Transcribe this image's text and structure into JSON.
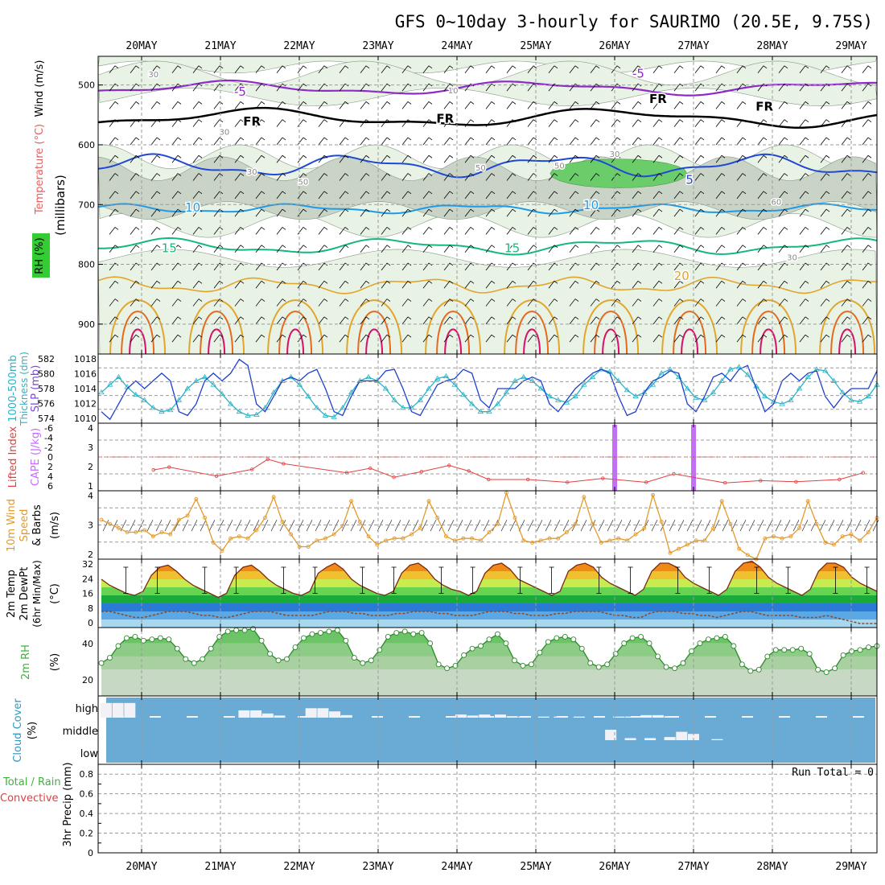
{
  "title": "GFS 0~10day 3-hourly for SAURIMO (20.5E, 9.75S)",
  "dates": [
    "20MAY",
    "21MAY",
    "22MAY",
    "23MAY",
    "24MAY",
    "25MAY",
    "26MAY",
    "27MAY",
    "28MAY",
    "29MAY"
  ],
  "colors": {
    "axis": "#000000",
    "grid": "#9a9a9a",
    "rh_light": "#e8f3e6",
    "rh_mid": "#c9d4c7",
    "rh_dark": "#8bc58a",
    "rh_green": "#6acd6a",
    "temp_m5": "#8d2bc8",
    "temp_fr": "#000000",
    "temp_5": "#1f48d6",
    "temp_10": "#1e9be8",
    "temp_15": "#15b87c",
    "temp_20": "#e2a52a",
    "temp_25": "#e36b1f",
    "temp_30": "#d8106a",
    "slp": "#1d3fcf",
    "thickness": "#2ab3c6",
    "lifted": "#e04040",
    "cape": "#c86aff",
    "wind10": "#e49a2a",
    "dew": "#8b4a2a",
    "rh2m": "#3cb43c",
    "cloud_bg": "#6aabd6",
    "cloud_fg": "#f2f2f6"
  },
  "panels": {
    "upper": {
      "ylabel_wind": "Wind (m/s)",
      "ylabel_temp": "Temperature (°C)",
      "ylabel_rh": "RH (%)",
      "ylabel_mb": "(millibars)",
      "yticks": [
        "500",
        "600",
        "700",
        "800",
        "900"
      ],
      "contour_labels": [
        {
          "text": "-5",
          "day": 1.25,
          "mb": 518,
          "color": "temp_m5"
        },
        {
          "text": "-5",
          "day": 6.3,
          "mb": 488,
          "color": "temp_m5"
        },
        {
          "text": "FR",
          "day": 1.4,
          "mb": 568,
          "color": "temp_fr"
        },
        {
          "text": "FR",
          "day": 3.85,
          "mb": 563,
          "color": "temp_fr"
        },
        {
          "text": "FR",
          "day": 6.55,
          "mb": 530,
          "color": "temp_fr"
        },
        {
          "text": "FR",
          "day": 7.9,
          "mb": 543,
          "color": "temp_fr"
        },
        {
          "text": "5",
          "day": 6.95,
          "mb": 665,
          "color": "temp_5"
        },
        {
          "text": "10",
          "day": 0.65,
          "mb": 712,
          "color": "temp_10"
        },
        {
          "text": "10",
          "day": 5.7,
          "mb": 708,
          "color": "temp_10"
        },
        {
          "text": "15",
          "day": 0.35,
          "mb": 780,
          "color": "temp_15"
        },
        {
          "text": "15",
          "day": 4.7,
          "mb": 780,
          "color": "temp_15"
        },
        {
          "text": "20",
          "day": 6.85,
          "mb": 826,
          "color": "temp_20"
        },
        {
          "text": "30",
          "day": 0.15,
          "mb": 487,
          "color": "rh_mid"
        },
        {
          "text": "10",
          "day": 3.95,
          "mb": 514,
          "color": "rh_mid"
        },
        {
          "text": "30",
          "day": 1.05,
          "mb": 583,
          "color": "rh_mid"
        },
        {
          "text": "30",
          "day": 1.4,
          "mb": 650,
          "color": "rh_mid"
        },
        {
          "text": "30",
          "day": 6.0,
          "mb": 620,
          "color": "rh_mid"
        },
        {
          "text": "50",
          "day": 2.05,
          "mb": 667,
          "color": "rh_mid"
        },
        {
          "text": "50",
          "day": 4.3,
          "mb": 643,
          "color": "rh_mid"
        },
        {
          "text": "50",
          "day": 5.3,
          "mb": 640,
          "color": "rh_mid"
        },
        {
          "text": "60",
          "day": 8.05,
          "mb": 700,
          "color": "rh_mid"
        },
        {
          "text": "30",
          "day": 8.25,
          "mb": 793,
          "color": "rh_mid"
        }
      ]
    },
    "slp": {
      "ylabel_left": "1000-500mb",
      "ylabel_left2": "Thickness (dm)",
      "ylabel_right": "SLP (mb)",
      "thick_ticks": [
        "582",
        "580",
        "578",
        "576",
        "574"
      ],
      "slp_ticks": [
        "1018",
        "1016",
        "1014",
        "1012",
        "1010"
      ]
    },
    "li": {
      "ylabel1": "Lifted Index",
      "ylabel2": "CAPE (J/kg)",
      "li_ticks": [
        "-6",
        "-4",
        "-2",
        "0",
        "2",
        "4",
        "6"
      ],
      "cape_ticks": [
        "4",
        "3",
        "2",
        "1"
      ]
    },
    "wind10": {
      "ylabel1": "10m Wind",
      "ylabel2": "Speed",
      "ylabel3": "& Barbs",
      "ylabel4": "(m/s)",
      "yticks": [
        "4",
        "3",
        "2"
      ]
    },
    "temp2m": {
      "ylabel1": "2m Temp",
      "ylabel2": "2m DewPt",
      "ylabel3": "(6hr Min/Max)",
      "ylabel4": "(°C)",
      "yticks": [
        "32",
        "24",
        "16",
        "8",
        "0"
      ]
    },
    "rh2m": {
      "ylabel1": "2m RH",
      "ylabel2": "(%)",
      "yticks": [
        "40",
        "20"
      ]
    },
    "cloud": {
      "ylabel1": "Cloud Cover",
      "ylabel2": "(%)",
      "levels": [
        "high",
        "middle",
        "low"
      ]
    },
    "precip": {
      "ylabel1": "Total / Rain",
      "ylabel2": "Convective",
      "ylabel3": "3hr Precip (mm)",
      "yticks": [
        "0.8",
        "0.6",
        "0.4",
        "0.2",
        "0"
      ],
      "run_total": "Run Total = 0"
    }
  },
  "chart_data": [
    {
      "type": "line",
      "name": "SLP (mb)",
      "x_step_hours": 3,
      "ylim": [
        1009.5,
        1018.5
      ],
      "values": [
        1011,
        1010,
        1012,
        1014,
        1015,
        1014,
        1015,
        1016,
        1015,
        1011,
        1010.5,
        1012,
        1015,
        1016,
        1015,
        1016,
        1017.8,
        1017,
        1012,
        1011,
        1013,
        1015,
        1015.5,
        1015,
        1016,
        1016.5,
        1014,
        1011,
        1010.5,
        1013,
        1015,
        1015,
        1015,
        1016.3,
        1016.5,
        1014,
        1011,
        1010.5,
        1012.5,
        1014.5,
        1015,
        1015.3,
        1016.5,
        1016,
        1012.5,
        1011.5,
        1014,
        1014,
        1014,
        1015,
        1015.5,
        1015,
        1012,
        1011,
        1012.5,
        1014,
        1015,
        1016,
        1016.5,
        1016,
        1013,
        1010.5,
        1011,
        1013.5,
        1015,
        1015.5,
        1016.3,
        1016,
        1012,
        1011,
        1013,
        1015.5,
        1016,
        1015,
        1016.5,
        1017,
        1014,
        1011,
        1012,
        1015,
        1016,
        1015,
        1016,
        1016.3,
        1013,
        1011.5,
        1013,
        1014,
        1014,
        1014,
        1016.3
      ]
    },
    {
      "type": "line",
      "name": "1000-500mb Thickness (dm)",
      "x_step_hours": 3,
      "ylim": [
        573.5,
        582.5
      ],
      "values": [
        577.5,
        578.5,
        579.5,
        578.2,
        577.2,
        576.5,
        575.5,
        575.0,
        575.2,
        576.5,
        578.0,
        579.0,
        579.5,
        578.5,
        577.3,
        576.0,
        575.0,
        574.5,
        574.6,
        575.5,
        577.5,
        579.0,
        579.5,
        578.5,
        577.0,
        575.5,
        574.5,
        574.3,
        575.5,
        577.5,
        579.0,
        579.5,
        579.0,
        578.0,
        576.5,
        575.5,
        575.5,
        576.5,
        578.0,
        579.3,
        579.6,
        578.5,
        577.2,
        576.0,
        575.0,
        575.0,
        576.0,
        577.5,
        579.0,
        579.5,
        579.0,
        578.0,
        577.0,
        576.5,
        576.2,
        577.0,
        578.5,
        579.5,
        580.5,
        580.2,
        579.0,
        577.8,
        577.0,
        577.5,
        578.5,
        580.0,
        580.5,
        579.5,
        578.0,
        576.8,
        576.5,
        577.5,
        579.0,
        580.5,
        580.8,
        579.8,
        578.3,
        577.0,
        576.3,
        576.0,
        576.5,
        578.0,
        579.5,
        580.5,
        580.3,
        579.0,
        577.5,
        576.5,
        576.3,
        577.0,
        578.5
      ]
    },
    {
      "type": "line",
      "name": "Lifted Index",
      "ylim": [
        6,
        -6
      ],
      "points": [
        [
          0.15,
          2.3
        ],
        [
          0.35,
          1.8
        ],
        [
          0.95,
          3.4
        ],
        [
          1.4,
          2.2
        ],
        [
          1.6,
          0.4
        ],
        [
          1.8,
          1.2
        ],
        [
          2.6,
          2.8
        ],
        [
          2.9,
          2.0
        ],
        [
          3.2,
          3.6
        ],
        [
          3.55,
          2.6
        ],
        [
          3.9,
          1.5
        ],
        [
          4.15,
          2.5
        ],
        [
          4.4,
          4.0
        ],
        [
          4.9,
          4.0
        ],
        [
          5.4,
          4.5
        ],
        [
          5.85,
          3.8
        ],
        [
          6.4,
          4.5
        ],
        [
          6.75,
          3.0
        ],
        [
          7.4,
          4.6
        ],
        [
          7.85,
          4.2
        ],
        [
          8.3,
          4.4
        ],
        [
          8.85,
          4.0
        ],
        [
          9.15,
          2.8
        ]
      ]
    },
    {
      "type": "bar",
      "name": "CAPE (J/kg)",
      "points": [
        [
          6.0,
          4.1
        ],
        [
          7.0,
          4.1
        ]
      ]
    },
    {
      "type": "line",
      "name": "10m Wind Speed (m/s)",
      "x_step_hours": 3,
      "ylim": [
        1.5,
        4.8
      ],
      "values": [
        3.4,
        3.2,
        3.0,
        2.8,
        2.8,
        2.9,
        2.6,
        2.8,
        2.7,
        3.4,
        3.6,
        4.4,
        3.5,
        2.3,
        1.9,
        2.5,
        2.6,
        2.5,
        2.9,
        3.5,
        4.5,
        3.3,
        2.7,
        2.1,
        2.1,
        2.4,
        2.5,
        2.7,
        3.1,
        4.3,
        3.3,
        2.6,
        2.2,
        2.4,
        2.5,
        2.5,
        2.7,
        3.0,
        4.3,
        3.5,
        2.6,
        2.4,
        2.5,
        2.5,
        2.4,
        2.8,
        3.2,
        4.7,
        3.5,
        2.4,
        2.3,
        2.4,
        2.5,
        2.5,
        2.8,
        3.2,
        4.5,
        3.2,
        2.3,
        2.4,
        2.5,
        2.4,
        2.7,
        3.0,
        4.6,
        3.3,
        1.8,
        2.0,
        2.2,
        2.4,
        2.4,
        3.0,
        4.3,
        3.2,
        2.0,
        1.7,
        1.5,
        2.5,
        2.6,
        2.5,
        2.6,
        3.0,
        4.3,
        3.2,
        2.3,
        2.2,
        2.6,
        2.7,
        2.4,
        2.8,
        3.5
      ]
    },
    {
      "type": "line",
      "name": "2m Temp (°C)",
      "x_step_hours": 3,
      "ylim": [
        0,
        34
      ],
      "values": [
        24,
        21,
        19,
        17,
        16,
        18,
        26,
        30,
        31,
        28,
        24,
        21,
        19,
        17,
        15,
        17,
        26,
        30,
        31,
        28,
        24,
        21,
        19,
        17,
        16,
        18,
        27,
        30,
        32,
        29,
        24,
        21,
        19,
        17,
        16,
        18,
        27,
        31,
        32,
        29,
        24,
        21,
        19,
        18,
        16,
        18,
        27,
        31,
        32,
        29,
        24,
        22,
        20,
        18,
        16,
        18,
        28,
        31,
        32,
        30,
        25,
        22,
        20,
        18,
        16,
        19,
        28,
        32,
        32,
        30,
        25,
        22,
        20,
        18,
        16,
        19,
        28,
        32,
        33,
        30,
        25,
        22,
        20,
        18,
        16,
        19,
        28,
        32,
        32,
        30,
        25,
        22,
        20,
        18
      ]
    },
    {
      "type": "line",
      "name": "2m DewPt (°C)",
      "x_step_hours": 3,
      "ylim": [
        0,
        34
      ],
      "values": [
        8,
        8,
        7,
        6,
        5,
        5,
        6,
        7,
        8,
        8,
        8,
        7,
        6,
        6,
        5,
        5,
        6,
        7,
        8,
        8,
        8,
        7,
        6,
        6,
        6,
        6,
        7,
        8,
        8,
        8,
        7,
        7,
        6,
        6,
        6,
        7,
        7,
        8,
        8,
        8,
        7,
        7,
        6,
        6,
        6,
        7,
        8,
        8,
        8,
        7,
        7,
        6,
        6,
        6,
        7,
        7,
        8,
        8,
        8,
        8,
        7,
        6,
        6,
        5,
        5,
        7,
        8,
        8,
        8,
        7,
        7,
        6,
        6,
        5,
        6,
        7,
        8,
        8,
        7,
        6,
        6,
        6,
        6,
        5,
        5,
        5,
        6,
        5,
        4,
        3,
        2,
        2,
        2
      ]
    },
    {
      "type": "line",
      "name": "2m RH (%)",
      "x_step_hours": 3,
      "ylim": [
        0,
        52
      ],
      "values": [
        25,
        29,
        38,
        44,
        45,
        42,
        43,
        44,
        43,
        36,
        28,
        25,
        28,
        36,
        45,
        49,
        50,
        50,
        51,
        42,
        32,
        27,
        28,
        37,
        44,
        47,
        48,
        49,
        50,
        42,
        29,
        25,
        27,
        35,
        45,
        48,
        49,
        47,
        48,
        40,
        24,
        21,
        23,
        31,
        36,
        38,
        43,
        47,
        40,
        27,
        23,
        24,
        33,
        41,
        44,
        45,
        43,
        36,
        25,
        22,
        24,
        32,
        40,
        44,
        45,
        40,
        30,
        22,
        21,
        25,
        34,
        40,
        43,
        44,
        45,
        38,
        24,
        19,
        20,
        30,
        35,
        35,
        35,
        36,
        32,
        20,
        18,
        21,
        31,
        34,
        35,
        37,
        38
      ]
    },
    {
      "type": "bar",
      "name": "Cloud Cover high (%)",
      "points": [
        [
          -0.45,
          70
        ],
        [
          -0.3,
          70
        ],
        [
          -0.15,
          70
        ],
        [
          1.3,
          35
        ],
        [
          1.45,
          35
        ],
        [
          1.6,
          20
        ],
        [
          1.75,
          10
        ],
        [
          2.15,
          45
        ],
        [
          2.3,
          45
        ],
        [
          2.45,
          30
        ],
        [
          2.6,
          12
        ],
        [
          4.05,
          15
        ],
        [
          4.2,
          10
        ],
        [
          4.35,
          15
        ],
        [
          4.55,
          15
        ],
        [
          4.7,
          7
        ],
        [
          4.85,
          5
        ],
        [
          5.1,
          5
        ],
        [
          5.3,
          5
        ],
        [
          5.55,
          5
        ],
        [
          6.05,
          5
        ],
        [
          6.2,
          5
        ],
        [
          6.4,
          12
        ],
        [
          6.55,
          12
        ],
        [
          6.7,
          7
        ]
      ]
    },
    {
      "type": "bar",
      "name": "Cloud Cover middle (%)",
      "points": [
        [
          5.95,
          50
        ],
        [
          6.2,
          10
        ],
        [
          6.45,
          10
        ],
        [
          6.7,
          15
        ],
        [
          6.85,
          40
        ],
        [
          7.0,
          30
        ],
        [
          7.3,
          5
        ]
      ]
    }
  ]
}
